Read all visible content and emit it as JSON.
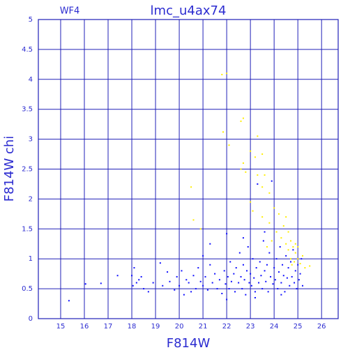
{
  "chart_data": {
    "type": "scatter",
    "title": "lmc_u4ax74",
    "subtitle": "WF4",
    "x_label": "F814W",
    "y_label": "F814W chi",
    "xlim": [
      14.06,
      26.7
    ],
    "ylim": [
      0,
      5
    ],
    "xticks": [
      15,
      16,
      17,
      18,
      19,
      20,
      21,
      22,
      23,
      24,
      25,
      26
    ],
    "yticks": [
      0,
      0.5,
      1,
      1.5,
      2,
      2.5,
      3,
      3.5,
      4,
      4.5,
      5
    ],
    "grid": true,
    "grid_color": "#2020b8",
    "series": [
      {
        "color": "#1010ff",
        "x": [
          15.35,
          16.05,
          16.7,
          17.4,
          18.0,
          18.05,
          18.1,
          18.2,
          18.3,
          18.4,
          18.5,
          18.7,
          18.9,
          19.2,
          19.3,
          19.5,
          19.6,
          19.8,
          19.9,
          20.0,
          20.1,
          20.2,
          20.3,
          20.4,
          20.5,
          20.6,
          20.7,
          20.8,
          20.9,
          21.0,
          21.1,
          21.2,
          21.3,
          21.4,
          21.5,
          21.6,
          21.7,
          21.8,
          21.9,
          21.95,
          22.0,
          22.05,
          22.1,
          22.15,
          22.2,
          22.3,
          22.35,
          22.4,
          22.5,
          22.55,
          22.6,
          22.65,
          22.7,
          22.75,
          22.8,
          22.85,
          22.9,
          22.95,
          23.0,
          23.05,
          23.1,
          23.15,
          23.2,
          23.25,
          23.3,
          23.35,
          23.4,
          23.45,
          23.5,
          23.55,
          23.6,
          23.65,
          23.7,
          23.75,
          23.8,
          23.85,
          23.9,
          23.95,
          24.0,
          24.05,
          24.1,
          24.15,
          24.2,
          24.25,
          24.3,
          24.35,
          24.4,
          24.45,
          24.5,
          24.55,
          24.6,
          24.65,
          24.7,
          24.75,
          24.8,
          24.85,
          24.9,
          24.95,
          25.0,
          25.05,
          25.1,
          25.15,
          25.2,
          23.2,
          22.0,
          24.3,
          23.6,
          22.7,
          21.0,
          21.3
        ],
        "values": [
          0.3,
          0.58,
          0.59,
          0.72,
          0.72,
          0.55,
          0.85,
          0.6,
          0.65,
          0.7,
          0.5,
          0.45,
          0.6,
          0.93,
          0.55,
          0.78,
          0.62,
          0.48,
          0.7,
          0.55,
          0.8,
          0.4,
          0.65,
          0.6,
          0.45,
          0.72,
          0.5,
          0.85,
          0.62,
          0.55,
          0.7,
          0.48,
          0.9,
          0.6,
          0.75,
          0.5,
          0.65,
          0.42,
          0.8,
          0.58,
          1.42,
          0.7,
          0.5,
          0.95,
          0.62,
          0.75,
          0.45,
          0.85,
          0.6,
          1.1,
          0.7,
          0.5,
          0.9,
          0.65,
          0.4,
          0.8,
          1.2,
          0.6,
          0.75,
          0.55,
          1.0,
          0.68,
          0.45,
          0.85,
          2.25,
          0.6,
          0.95,
          0.72,
          0.5,
          1.3,
          0.8,
          0.62,
          0.9,
          0.45,
          1.1,
          0.7,
          2.3,
          0.58,
          0.85,
          0.65,
          1.0,
          0.5,
          0.78,
          1.2,
          0.6,
          0.9,
          0.72,
          0.45,
          1.05,
          0.68,
          0.85,
          0.55,
          0.95,
          0.7,
          1.15,
          0.6,
          0.8,
          0.5,
          0.9,
          0.65,
          0.75,
          1.0,
          0.55,
          0.35,
          0.32,
          0.4,
          1.45,
          1.35,
          1.05,
          1.25
        ]
      },
      {
        "color": "#ffee00",
        "x": [
          21.8,
          22.0,
          21.85,
          22.6,
          22.7,
          22.1,
          23.3,
          22.7,
          23.0,
          23.2,
          23.5,
          22.6,
          22.8,
          23.3,
          23.6,
          23.5,
          23.8,
          20.5,
          20.6,
          20.9,
          23.0,
          23.1,
          23.5,
          23.8,
          24.0,
          24.2,
          24.4,
          24.5,
          24.6,
          24.3,
          24.7,
          24.8,
          24.9,
          25.0,
          24.85,
          25.1,
          25.2,
          24.7,
          24.6,
          24.9,
          25.3,
          25.5,
          23.9,
          24.1,
          23.7,
          24.75,
          25.0,
          24.5
        ],
        "values": [
          4.08,
          4.1,
          3.12,
          3.3,
          3.35,
          2.9,
          3.05,
          2.6,
          2.8,
          2.7,
          2.75,
          2.5,
          2.45,
          2.4,
          2.4,
          2.2,
          2.1,
          2.2,
          1.65,
          1.5,
          1.95,
          1.8,
          1.7,
          1.6,
          1.85,
          1.75,
          1.55,
          1.7,
          1.45,
          1.35,
          1.3,
          1.2,
          1.1,
          1.0,
          0.95,
          0.92,
          1.05,
          1.0,
          1.15,
          1.25,
          0.85,
          0.88,
          1.3,
          1.45,
          1.2,
          0.9,
          1.2,
          1.25
        ]
      }
    ]
  }
}
